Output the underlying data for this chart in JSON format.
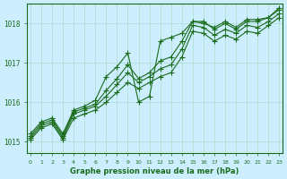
{
  "title": "Graphe pression niveau de la mer (hPa)",
  "xlabel": "Graphe pression niveau de la mer (hPa)",
  "x_ticks": [
    0,
    1,
    2,
    3,
    4,
    5,
    6,
    7,
    8,
    9,
    10,
    11,
    12,
    13,
    14,
    15,
    16,
    17,
    18,
    19,
    20,
    21,
    22,
    23
  ],
  "ylim": [
    1014.7,
    1018.5
  ],
  "xlim": [
    -0.3,
    23.3
  ],
  "yticks": [
    1015,
    1016,
    1017,
    1018
  ],
  "bg_color": "#cceeff",
  "grid_color": "#aaddcc",
  "line_color": "#1a6b1a",
  "marker_color": "#1a6b1a",
  "series": {
    "line1": [
      1015.2,
      1015.5,
      1015.6,
      1015.2,
      1015.8,
      1015.9,
      1016.05,
      1016.65,
      1016.9,
      1017.25,
      1016.0,
      1016.15,
      1017.55,
      1017.65,
      1017.75,
      1018.05,
      1018.0,
      1017.9,
      1018.05,
      1017.9,
      1018.1,
      1018.1,
      1018.15,
      1018.4
    ],
    "line2": [
      1015.15,
      1015.45,
      1015.55,
      1015.15,
      1015.75,
      1015.85,
      1015.95,
      1016.3,
      1016.6,
      1016.95,
      1016.6,
      1016.75,
      1017.05,
      1017.15,
      1017.55,
      1018.05,
      1018.05,
      1017.85,
      1018.0,
      1017.85,
      1018.05,
      1018.05,
      1018.15,
      1018.35
    ],
    "line3": [
      1015.1,
      1015.4,
      1015.5,
      1015.1,
      1015.7,
      1015.8,
      1015.9,
      1016.15,
      1016.45,
      1016.75,
      1016.5,
      1016.65,
      1016.85,
      1016.95,
      1017.35,
      1017.95,
      1017.9,
      1017.7,
      1017.85,
      1017.75,
      1017.95,
      1017.9,
      1018.05,
      1018.25
    ],
    "line4": [
      1015.05,
      1015.35,
      1015.45,
      1015.05,
      1015.6,
      1015.7,
      1015.8,
      1016.0,
      1016.25,
      1016.5,
      1016.35,
      1016.5,
      1016.65,
      1016.75,
      1017.15,
      1017.8,
      1017.75,
      1017.55,
      1017.7,
      1017.6,
      1017.8,
      1017.75,
      1017.95,
      1018.15
    ]
  }
}
